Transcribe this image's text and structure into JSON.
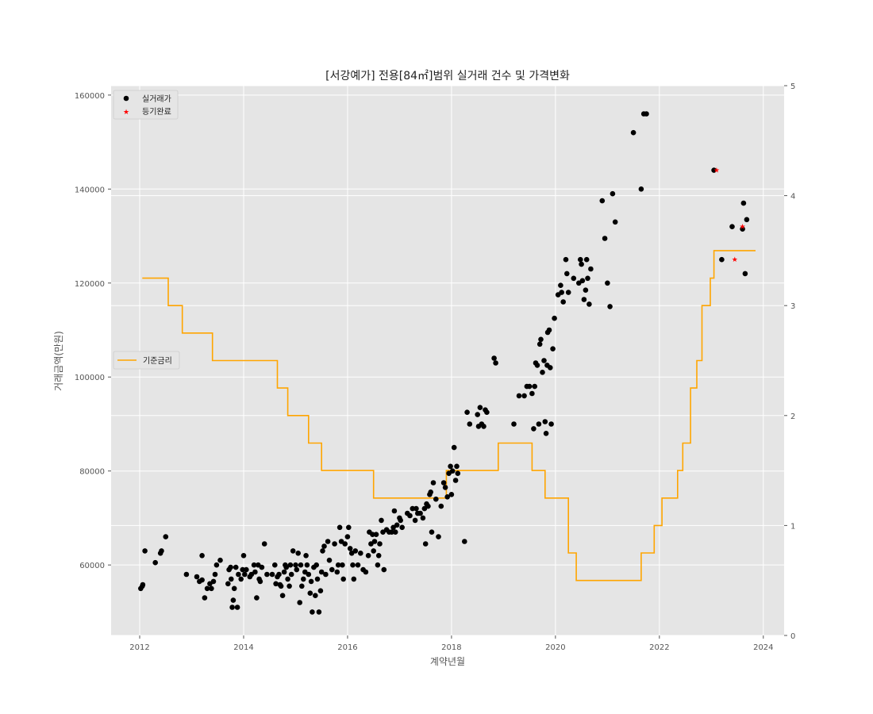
{
  "chart_data": {
    "type": "scatter",
    "title": "[서강예가] 전용[84㎡]범위 실거래 건수 및 가격변화",
    "xlabel": "계약년월",
    "ylabel": "거래금액(만원)",
    "xlim": [
      2011.45,
      2024.4
    ],
    "ylim": [
      45000,
      162000
    ],
    "y2lim": [
      0,
      5
    ],
    "xticks": [
      2012,
      2014,
      2016,
      2018,
      2020,
      2022,
      2024
    ],
    "yticks": [
      60000,
      80000,
      100000,
      120000,
      140000,
      160000
    ],
    "y2ticks": [
      0,
      1,
      2,
      3,
      4,
      5
    ],
    "grid": true,
    "legend_upper": {
      "position": "top-left",
      "entries": [
        "실거래가",
        "등기완료"
      ]
    },
    "legend_lower": {
      "position": "middle-left",
      "entries": [
        "기준금리"
      ]
    },
    "colors": {
      "background": "#e5e5e5",
      "grid": "#ffffff",
      "points": "#000000",
      "registered": "#ff0000",
      "rate": "#ffa500"
    },
    "series": [
      {
        "name": "실거래가",
        "marker": "circle",
        "color": "#000000",
        "points": [
          [
            2012.02,
            55000
          ],
          [
            2012.05,
            55500
          ],
          [
            2012.06,
            55800
          ],
          [
            2012.1,
            63000
          ],
          [
            2012.3,
            60500
          ],
          [
            2012.4,
            62500
          ],
          [
            2012.42,
            63000
          ],
          [
            2012.5,
            66000
          ],
          [
            2012.9,
            58000
          ],
          [
            2013.1,
            57500
          ],
          [
            2013.15,
            56500
          ],
          [
            2013.2,
            62000
          ],
          [
            2013.2,
            56800
          ],
          [
            2013.25,
            53000
          ],
          [
            2013.3,
            55000
          ],
          [
            2013.35,
            56000
          ],
          [
            2013.38,
            55000
          ],
          [
            2013.42,
            56500
          ],
          [
            2013.45,
            58000
          ],
          [
            2013.48,
            60000
          ],
          [
            2013.55,
            61000
          ],
          [
            2013.7,
            56000
          ],
          [
            2013.72,
            59000
          ],
          [
            2013.75,
            59500
          ],
          [
            2013.76,
            57000
          ],
          [
            2013.78,
            51000
          ],
          [
            2013.8,
            52500
          ],
          [
            2013.82,
            55000
          ],
          [
            2013.85,
            59500
          ],
          [
            2013.88,
            51000
          ],
          [
            2013.9,
            58000
          ],
          [
            2013.95,
            57000
          ],
          [
            2013.98,
            59000
          ],
          [
            2014.0,
            62000
          ],
          [
            2014.02,
            58000
          ],
          [
            2014.05,
            59000
          ],
          [
            2014.12,
            57500
          ],
          [
            2014.15,
            58000
          ],
          [
            2014.2,
            60000
          ],
          [
            2014.22,
            58500
          ],
          [
            2014.25,
            53000
          ],
          [
            2014.28,
            60000
          ],
          [
            2014.3,
            57000
          ],
          [
            2014.32,
            56500
          ],
          [
            2014.35,
            59500
          ],
          [
            2014.4,
            64500
          ],
          [
            2014.45,
            58000
          ],
          [
            2014.55,
            58000
          ],
          [
            2014.6,
            60000
          ],
          [
            2014.62,
            56000
          ],
          [
            2014.65,
            57500
          ],
          [
            2014.68,
            58000
          ],
          [
            2014.7,
            55800
          ],
          [
            2014.72,
            55500
          ],
          [
            2014.75,
            53500
          ],
          [
            2014.78,
            58500
          ],
          [
            2014.8,
            60000
          ],
          [
            2014.82,
            59500
          ],
          [
            2014.85,
            57000
          ],
          [
            2014.88,
            55500
          ],
          [
            2014.9,
            60000
          ],
          [
            2014.92,
            58000
          ],
          [
            2014.95,
            63000
          ],
          [
            2015.0,
            60000
          ],
          [
            2015.02,
            59000
          ],
          [
            2015.05,
            62500
          ],
          [
            2015.08,
            52000
          ],
          [
            2015.1,
            60000
          ],
          [
            2015.12,
            55500
          ],
          [
            2015.15,
            57000
          ],
          [
            2015.18,
            58500
          ],
          [
            2015.2,
            62000
          ],
          [
            2015.22,
            60000
          ],
          [
            2015.25,
            58000
          ],
          [
            2015.28,
            54000
          ],
          [
            2015.3,
            56500
          ],
          [
            2015.32,
            50000
          ],
          [
            2015.35,
            59500
          ],
          [
            2015.38,
            53500
          ],
          [
            2015.4,
            60000
          ],
          [
            2015.42,
            57000
          ],
          [
            2015.45,
            50000
          ],
          [
            2015.48,
            54500
          ],
          [
            2015.5,
            58500
          ],
          [
            2015.52,
            63000
          ],
          [
            2015.55,
            64000
          ],
          [
            2015.58,
            58000
          ],
          [
            2015.62,
            65000
          ],
          [
            2015.65,
            61000
          ],
          [
            2015.7,
            59000
          ],
          [
            2015.75,
            64500
          ],
          [
            2015.8,
            58500
          ],
          [
            2015.82,
            60000
          ],
          [
            2015.85,
            68000
          ],
          [
            2015.88,
            65000
          ],
          [
            2015.9,
            60000
          ],
          [
            2015.92,
            57000
          ],
          [
            2015.95,
            64500
          ],
          [
            2016.0,
            66000
          ],
          [
            2016.02,
            68000
          ],
          [
            2016.05,
            63500
          ],
          [
            2016.08,
            62500
          ],
          [
            2016.1,
            60000
          ],
          [
            2016.12,
            57000
          ],
          [
            2016.15,
            63000
          ],
          [
            2016.2,
            60000
          ],
          [
            2016.25,
            62500
          ],
          [
            2016.3,
            59000
          ],
          [
            2016.35,
            58500
          ],
          [
            2016.4,
            62000
          ],
          [
            2016.42,
            67000
          ],
          [
            2016.45,
            64500
          ],
          [
            2016.48,
            66500
          ],
          [
            2016.5,
            63000
          ],
          [
            2016.52,
            65000
          ],
          [
            2016.55,
            66500
          ],
          [
            2016.58,
            60000
          ],
          [
            2016.6,
            62000
          ],
          [
            2016.62,
            64500
          ],
          [
            2016.65,
            69500
          ],
          [
            2016.68,
            67000
          ],
          [
            2016.7,
            59000
          ],
          [
            2016.75,
            67500
          ],
          [
            2016.8,
            67000
          ],
          [
            2016.85,
            67000
          ],
          [
            2016.88,
            68000
          ],
          [
            2016.9,
            71500
          ],
          [
            2016.92,
            67000
          ],
          [
            2016.95,
            68500
          ],
          [
            2017.0,
            70000
          ],
          [
            2017.02,
            69500
          ],
          [
            2017.05,
            68000
          ],
          [
            2017.15,
            71000
          ],
          [
            2017.2,
            70500
          ],
          [
            2017.25,
            72000
          ],
          [
            2017.3,
            69500
          ],
          [
            2017.32,
            72000
          ],
          [
            2017.35,
            71000
          ],
          [
            2017.4,
            71000
          ],
          [
            2017.45,
            70000
          ],
          [
            2017.48,
            72000
          ],
          [
            2017.5,
            64500
          ],
          [
            2017.52,
            73000
          ],
          [
            2017.55,
            72500
          ],
          [
            2017.58,
            75000
          ],
          [
            2017.6,
            75500
          ],
          [
            2017.62,
            67000
          ],
          [
            2017.65,
            77500
          ],
          [
            2017.7,
            74000
          ],
          [
            2017.75,
            66000
          ],
          [
            2017.8,
            72500
          ],
          [
            2017.85,
            77500
          ],
          [
            2017.88,
            76500
          ],
          [
            2017.92,
            74500
          ],
          [
            2017.95,
            79500
          ],
          [
            2017.98,
            81000
          ],
          [
            2018.0,
            75000
          ],
          [
            2018.02,
            80000
          ],
          [
            2018.05,
            85000
          ],
          [
            2018.08,
            78000
          ],
          [
            2018.1,
            81000
          ],
          [
            2018.12,
            79500
          ],
          [
            2018.25,
            65000
          ],
          [
            2018.3,
            92500
          ],
          [
            2018.35,
            90000
          ],
          [
            2018.5,
            92000
          ],
          [
            2018.52,
            89500
          ],
          [
            2018.55,
            93500
          ],
          [
            2018.58,
            90000
          ],
          [
            2018.62,
            89500
          ],
          [
            2018.65,
            93000
          ],
          [
            2018.68,
            92500
          ],
          [
            2018.82,
            104000
          ],
          [
            2018.85,
            103000
          ],
          [
            2019.2,
            90000
          ],
          [
            2019.3,
            96000
          ],
          [
            2019.4,
            96000
          ],
          [
            2019.45,
            98000
          ],
          [
            2019.5,
            98000
          ],
          [
            2019.55,
            96500
          ],
          [
            2019.58,
            89000
          ],
          [
            2019.6,
            98000
          ],
          [
            2019.62,
            103000
          ],
          [
            2019.65,
            102500
          ],
          [
            2019.68,
            90000
          ],
          [
            2019.7,
            107000
          ],
          [
            2019.72,
            108000
          ],
          [
            2019.75,
            101000
          ],
          [
            2019.78,
            103500
          ],
          [
            2019.8,
            90500
          ],
          [
            2019.82,
            88000
          ],
          [
            2019.84,
            102500
          ],
          [
            2019.85,
            109500
          ],
          [
            2019.88,
            110000
          ],
          [
            2019.9,
            102000
          ],
          [
            2019.92,
            90000
          ],
          [
            2019.95,
            106000
          ],
          [
            2019.98,
            112500
          ],
          [
            2020.05,
            117500
          ],
          [
            2020.1,
            119500
          ],
          [
            2020.12,
            118000
          ],
          [
            2020.15,
            116000
          ],
          [
            2020.2,
            125000
          ],
          [
            2020.22,
            122000
          ],
          [
            2020.25,
            118000
          ],
          [
            2020.35,
            121000
          ],
          [
            2020.45,
            120000
          ],
          [
            2020.48,
            125000
          ],
          [
            2020.5,
            124000
          ],
          [
            2020.52,
            120500
          ],
          [
            2020.55,
            116500
          ],
          [
            2020.58,
            118500
          ],
          [
            2020.6,
            125000
          ],
          [
            2020.62,
            121000
          ],
          [
            2020.65,
            115500
          ],
          [
            2020.68,
            123000
          ],
          [
            2020.9,
            137500
          ],
          [
            2020.95,
            129500
          ],
          [
            2021.0,
            120000
          ],
          [
            2021.05,
            115000
          ],
          [
            2021.1,
            139000
          ],
          [
            2021.15,
            133000
          ],
          [
            2021.5,
            152000
          ],
          [
            2021.65,
            140000
          ],
          [
            2021.7,
            156000
          ],
          [
            2021.75,
            156000
          ],
          [
            2023.05,
            144000
          ],
          [
            2023.2,
            125000
          ],
          [
            2023.4,
            132000
          ],
          [
            2023.6,
            131500
          ],
          [
            2023.62,
            137000
          ],
          [
            2023.65,
            122000
          ],
          [
            2023.68,
            133500
          ]
        ]
      },
      {
        "name": "등기완료",
        "marker": "star",
        "color": "#ff0000",
        "points": [
          [
            2023.1,
            144000
          ],
          [
            2023.45,
            125000
          ],
          [
            2023.6,
            132000
          ]
        ]
      },
      {
        "name": "기준금리",
        "marker": "step",
        "color": "#ffa500",
        "axis": "right",
        "points": [
          [
            2012.05,
            3.25
          ],
          [
            2012.55,
            3.0
          ],
          [
            2012.82,
            2.75
          ],
          [
            2013.4,
            2.5
          ],
          [
            2014.65,
            2.25
          ],
          [
            2014.85,
            2.0
          ],
          [
            2015.25,
            1.75
          ],
          [
            2015.5,
            1.5
          ],
          [
            2016.5,
            1.25
          ],
          [
            2017.9,
            1.5
          ],
          [
            2018.9,
            1.75
          ],
          [
            2019.55,
            1.5
          ],
          [
            2019.8,
            1.25
          ],
          [
            2020.25,
            0.75
          ],
          [
            2020.4,
            0.5
          ],
          [
            2021.65,
            0.75
          ],
          [
            2021.9,
            1.0
          ],
          [
            2022.05,
            1.25
          ],
          [
            2022.35,
            1.5
          ],
          [
            2022.45,
            1.75
          ],
          [
            2022.6,
            2.25
          ],
          [
            2022.72,
            2.5
          ],
          [
            2022.82,
            3.0
          ],
          [
            2022.98,
            3.25
          ],
          [
            2023.05,
            3.5
          ],
          [
            2023.85,
            3.5
          ]
        ]
      }
    ]
  }
}
